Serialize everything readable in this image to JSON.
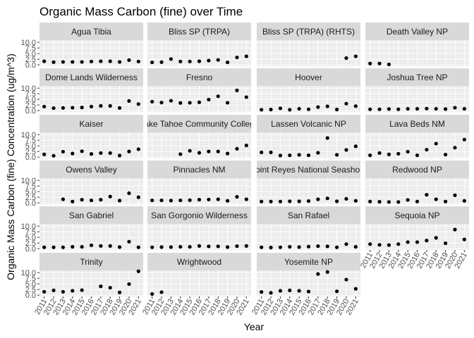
{
  "chart_data": {
    "type": "scatter",
    "title": "Organic Mass Carbon (fine) over Time",
    "xlabel": "Year",
    "ylabel": "Organic Mass Carbon (fine) Concentration (ug/m^3)",
    "x_ticks": [
      2011,
      2012,
      2013,
      2014,
      2015,
      2016,
      2017,
      2018,
      2019,
      2020,
      2021
    ],
    "y_ticks": [
      0.0,
      2.5,
      5.0,
      7.5,
      10.0
    ],
    "y_tick_labels": [
      "0.0",
      "2.5",
      "5.0",
      "7.5",
      "10.0"
    ],
    "xlim": [
      2010.5,
      2021.5
    ],
    "ylim": [
      -0.6,
      11.0
    ],
    "grid": true,
    "point_color": "#000000",
    "panel_background": "#ebebeb",
    "strip_background": "#d9d9d9",
    "panels": [
      {
        "label": "Agua Tibia",
        "x": [
          2011,
          2012,
          2013,
          2014,
          2015,
          2016,
          2017,
          2018,
          2019,
          2020,
          2021
        ],
        "y": [
          1.6,
          1.2,
          1.3,
          1.3,
          1.3,
          1.5,
          1.6,
          1.6,
          1.3,
          2.1,
          1.5
        ]
      },
      {
        "label": "Bliss SP (TRPA)",
        "x": [
          2011,
          2012,
          2013,
          2014,
          2015,
          2016,
          2017,
          2018,
          2019,
          2020,
          2021
        ],
        "y": [
          1.1,
          1.2,
          2.6,
          1.5,
          1.5,
          1.6,
          1.9,
          2.2,
          1.1,
          3.3,
          3.8
        ]
      },
      {
        "label": "Bliss SP (TRPA) (RHTS)",
        "x": [
          2020,
          2021
        ],
        "y": [
          3.0,
          3.8
        ]
      },
      {
        "label": "Death Valley NP",
        "x": [
          2011,
          2012,
          2013
        ],
        "y": [
          0.6,
          0.6,
          0.2
        ]
      },
      {
        "label": "Dome Lands Wilderness",
        "x": [
          2011,
          2012,
          2013,
          2014,
          2015,
          2016,
          2017,
          2018,
          2019,
          2020,
          2021
        ],
        "y": [
          1.8,
          1.1,
          1.2,
          1.3,
          1.4,
          1.8,
          2.1,
          2.1,
          1.2,
          4.3,
          2.9
        ]
      },
      {
        "label": "Fresno",
        "x": [
          2011,
          2012,
          2013,
          2014,
          2015,
          2016,
          2017,
          2018,
          2019,
          2020,
          2021
        ],
        "y": [
          4.0,
          3.6,
          4.4,
          3.4,
          3.5,
          3.7,
          4.9,
          6.4,
          3.5,
          9.0,
          6.0
        ]
      },
      {
        "label": "Hoover",
        "x": [
          2011,
          2012,
          2013,
          2014,
          2015,
          2016,
          2017,
          2018,
          2019,
          2020,
          2021
        ],
        "y": [
          0.4,
          0.5,
          1.0,
          0.4,
          0.8,
          0.6,
          1.6,
          1.9,
          0.5,
          3.1,
          2.0
        ]
      },
      {
        "label": "Joshua Tree NP",
        "x": [
          2011,
          2012,
          2013,
          2014,
          2015,
          2016,
          2017,
          2018,
          2019,
          2020,
          2021
        ],
        "y": [
          0.6,
          0.6,
          0.7,
          0.6,
          0.8,
          0.8,
          0.9,
          0.8,
          0.7,
          1.3,
          0.8
        ]
      },
      {
        "label": "Kaiser",
        "x": [
          2011,
          2012,
          2013,
          2014,
          2015,
          2016,
          2017,
          2018,
          2019,
          2020,
          2021
        ],
        "y": [
          1.2,
          0.6,
          2.4,
          1.6,
          2.6,
          1.4,
          1.8,
          1.8,
          0.7,
          2.5,
          3.5
        ]
      },
      {
        "label": "Lake Tahoe Community College",
        "x": [
          2014,
          2015,
          2016,
          2017,
          2018,
          2019,
          2020,
          2021
        ],
        "y": [
          1.3,
          2.8,
          1.9,
          2.5,
          2.5,
          1.6,
          3.7,
          5.2
        ]
      },
      {
        "label": "Lassen Volcanic NP",
        "x": [
          2011,
          2012,
          2013,
          2014,
          2015,
          2016,
          2017,
          2018,
          2019,
          2020,
          2021
        ],
        "y": [
          2.1,
          2.1,
          0.7,
          0.8,
          1.0,
          0.8,
          1.9,
          8.5,
          1.0,
          3.2,
          4.8
        ]
      },
      {
        "label": "Lava Beds NM",
        "x": [
          2011,
          2012,
          2013,
          2014,
          2015,
          2016,
          2017,
          2018,
          2019,
          2020,
          2021
        ],
        "y": [
          0.8,
          1.8,
          1.2,
          1.5,
          2.4,
          0.8,
          3.3,
          6.0,
          1.1,
          4.2,
          7.8
        ]
      },
      {
        "label": "Owens Valley",
        "x": [
          2013,
          2014,
          2015,
          2016,
          2017,
          2018,
          2019,
          2020,
          2021
        ],
        "y": [
          1.6,
          0.6,
          1.4,
          1.1,
          1.4,
          2.8,
          1.0,
          4.3,
          2.5
        ]
      },
      {
        "label": "Pinnacles NM",
        "x": [
          2011,
          2012,
          2013,
          2014,
          2015,
          2016,
          2017,
          2018,
          2019,
          2020,
          2021
        ],
        "y": [
          1.1,
          1.1,
          1.0,
          1.1,
          1.2,
          1.4,
          1.5,
          1.6,
          0.9,
          2.7,
          1.6
        ]
      },
      {
        "label": "Point Reyes National Seashore",
        "x": [
          2011,
          2012,
          2013,
          2014,
          2015,
          2016,
          2017,
          2018,
          2019,
          2020,
          2021
        ],
        "y": [
          0.6,
          0.6,
          0.6,
          0.7,
          0.7,
          0.8,
          1.6,
          2.0,
          0.7,
          1.8,
          0.9
        ]
      },
      {
        "label": "Redwood NP",
        "x": [
          2011,
          2012,
          2013,
          2014,
          2015,
          2016,
          2017,
          2018,
          2019,
          2020,
          2021
        ],
        "y": [
          0.6,
          0.5,
          0.4,
          0.4,
          1.3,
          0.6,
          3.6,
          1.6,
          0.6,
          3.4,
          0.9
        ]
      },
      {
        "label": "San Gabriel",
        "x": [
          2011,
          2012,
          2013,
          2014,
          2015,
          2016,
          2017,
          2018,
          2019,
          2020,
          2021
        ],
        "y": [
          0.6,
          0.6,
          0.6,
          0.8,
          0.8,
          1.5,
          1.2,
          1.2,
          0.7,
          3.1,
          0.6
        ]
      },
      {
        "label": "San Gorgonio Wilderness",
        "x": [
          2011,
          2012,
          2013,
          2014,
          2015,
          2016,
          2017,
          2018,
          2019,
          2020,
          2021
        ],
        "y": [
          0.6,
          0.7,
          0.7,
          0.8,
          0.8,
          1.2,
          1.0,
          1.0,
          0.7,
          1.1,
          1.2
        ]
      },
      {
        "label": "San Rafael",
        "x": [
          2011,
          2012,
          2013,
          2014,
          2015,
          2016,
          2017,
          2018,
          2019,
          2020,
          2021
        ],
        "y": [
          0.6,
          0.5,
          0.6,
          0.8,
          0.7,
          0.9,
          1.1,
          1.0,
          0.6,
          2.0,
          0.8
        ]
      },
      {
        "label": "Sequoia NP",
        "x": [
          2011,
          2012,
          2013,
          2014,
          2015,
          2016,
          2017,
          2018,
          2019,
          2020,
          2021
        ],
        "y": [
          2.0,
          1.7,
          1.6,
          2.0,
          2.9,
          2.9,
          3.6,
          4.8,
          2.4,
          8.5,
          4.1
        ]
      },
      {
        "label": "Trinity",
        "x": [
          2011,
          2012,
          2013,
          2014,
          2015,
          2017,
          2018,
          2019,
          2020,
          2021
        ],
        "y": [
          1.5,
          2.1,
          1.5,
          1.9,
          2.2,
          3.9,
          3.3,
          1.2,
          4.9,
          10.6
        ]
      },
      {
        "label": "Wrightwood",
        "x": [
          2011,
          2012
        ],
        "y": [
          0.5,
          1.3
        ]
      },
      {
        "label": "Yosemite NP",
        "x": [
          2011,
          2012,
          2013,
          2014,
          2015,
          2016,
          2017,
          2018,
          2019,
          2020,
          2021
        ],
        "y": [
          1.4,
          1.0,
          1.9,
          2.1,
          1.9,
          1.6,
          9.4,
          10.3,
          1.7,
          6.9,
          2.8
        ]
      }
    ]
  }
}
